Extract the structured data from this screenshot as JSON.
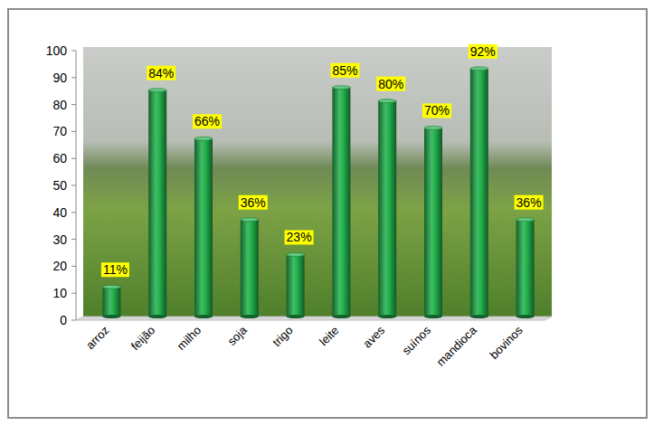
{
  "chart_data": {
    "type": "bar",
    "categories": [
      "arroz",
      "feijão",
      "milho",
      "soja",
      "trigo",
      "leite",
      "aves",
      "suínos",
      "mandioca",
      "bovinos"
    ],
    "values": [
      11,
      84,
      66,
      36,
      23,
      85,
      80,
      70,
      92,
      36
    ],
    "value_labels": [
      "11%",
      "84%",
      "66%",
      "36%",
      "23%",
      "85%",
      "80%",
      "70%",
      "92%",
      "36%"
    ],
    "color": "#22b14c",
    "ylim": [
      0,
      100
    ],
    "yticks": [
      0,
      10,
      20,
      30,
      40,
      50,
      60,
      70,
      80,
      90,
      100
    ],
    "grid": false,
    "data_labels": true
  }
}
